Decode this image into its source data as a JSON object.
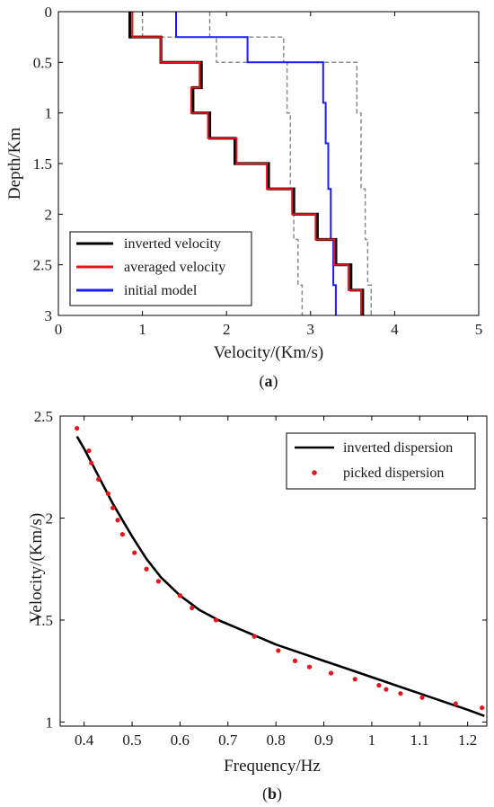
{
  "chart_data": [
    {
      "id": "a",
      "type": "line",
      "caption_letter": "a",
      "xlabel": "Velocity/(Km/s)",
      "ylabel": "Depth/Km",
      "xlim": [
        0,
        5
      ],
      "ylim": [
        0,
        3
      ],
      "y_inverted": true,
      "xticks": [
        0,
        1,
        2,
        3,
        4,
        5
      ],
      "yticks": [
        0,
        0.5,
        1,
        1.5,
        2,
        2.5,
        3
      ],
      "ytick_labels": [
        "0",
        "0.5",
        "1",
        "1.5",
        "2",
        "2.5",
        "3"
      ],
      "grid": false,
      "legend_position": "bottom-left",
      "series": [
        {
          "name": "inverted velocity",
          "color": "#000000",
          "style": "solid",
          "steps": [
            {
              "v": 0.85,
              "top": 0,
              "bottom": 0.25
            },
            {
              "v": 1.22,
              "top": 0.25,
              "bottom": 0.5
            },
            {
              "v": 1.7,
              "top": 0.5,
              "bottom": 0.75
            },
            {
              "v": 1.6,
              "top": 0.75,
              "bottom": 1.0
            },
            {
              "v": 1.8,
              "top": 1.0,
              "bottom": 1.25
            },
            {
              "v": 2.1,
              "top": 1.25,
              "bottom": 1.5
            },
            {
              "v": 2.5,
              "top": 1.5,
              "bottom": 1.75
            },
            {
              "v": 2.8,
              "top": 1.75,
              "bottom": 2.0
            },
            {
              "v": 3.08,
              "top": 2.0,
              "bottom": 2.25
            },
            {
              "v": 3.3,
              "top": 2.25,
              "bottom": 2.5
            },
            {
              "v": 3.48,
              "top": 2.5,
              "bottom": 2.75
            },
            {
              "v": 3.62,
              "top": 2.75,
              "bottom": 3.0
            }
          ]
        },
        {
          "name": "averaged velocity",
          "color": "#e8141b",
          "style": "solid",
          "steps": [
            {
              "v": 0.88,
              "top": 0,
              "bottom": 0.25
            },
            {
              "v": 1.22,
              "top": 0.25,
              "bottom": 0.5
            },
            {
              "v": 1.68,
              "top": 0.5,
              "bottom": 0.75
            },
            {
              "v": 1.58,
              "top": 0.75,
              "bottom": 1.0
            },
            {
              "v": 1.78,
              "top": 1.0,
              "bottom": 1.25
            },
            {
              "v": 2.12,
              "top": 1.25,
              "bottom": 1.5
            },
            {
              "v": 2.48,
              "top": 1.5,
              "bottom": 1.75
            },
            {
              "v": 2.78,
              "top": 1.75,
              "bottom": 2.0
            },
            {
              "v": 3.06,
              "top": 2.0,
              "bottom": 2.25
            },
            {
              "v": 3.28,
              "top": 2.25,
              "bottom": 2.5
            },
            {
              "v": 3.45,
              "top": 2.5,
              "bottom": 2.75
            },
            {
              "v": 3.6,
              "top": 2.75,
              "bottom": 3.0
            }
          ]
        },
        {
          "name": "initial model",
          "color": "#1a1aff",
          "style": "solid",
          "steps": [
            {
              "v": 1.4,
              "top": 0,
              "bottom": 0.25
            },
            {
              "v": 2.25,
              "top": 0.25,
              "bottom": 0.5
            },
            {
              "v": 3.15,
              "top": 0.5,
              "bottom": 0.9
            },
            {
              "v": 3.18,
              "top": 0.9,
              "bottom": 1.3
            },
            {
              "v": 3.21,
              "top": 1.3,
              "bottom": 1.75
            },
            {
              "v": 3.24,
              "top": 1.75,
              "bottom": 2.25
            },
            {
              "v": 3.27,
              "top": 2.25,
              "bottom": 2.7
            },
            {
              "v": 3.3,
              "top": 2.7,
              "bottom": 3.0
            }
          ]
        },
        {
          "name": "",
          "color": "#8c8c8c",
          "style": "dashed",
          "steps": [
            {
              "v": 1.0,
              "top": 0,
              "bottom": 0.25
            },
            {
              "v": 1.88,
              "top": 0.25,
              "bottom": 0.5
            },
            {
              "v": 2.72,
              "top": 0.5,
              "bottom": 1.0
            },
            {
              "v": 2.76,
              "top": 1.0,
              "bottom": 1.75
            },
            {
              "v": 2.8,
              "top": 1.75,
              "bottom": 2.25
            },
            {
              "v": 2.85,
              "top": 2.25,
              "bottom": 2.7
            },
            {
              "v": 2.9,
              "top": 2.7,
              "bottom": 3.0
            }
          ]
        },
        {
          "name": "",
          "color": "#8c8c8c",
          "style": "dashed",
          "steps": [
            {
              "v": 1.8,
              "top": 0,
              "bottom": 0.25
            },
            {
              "v": 2.68,
              "top": 0.25,
              "bottom": 0.5
            },
            {
              "v": 3.55,
              "top": 0.5,
              "bottom": 1.0
            },
            {
              "v": 3.6,
              "top": 1.0,
              "bottom": 1.75
            },
            {
              "v": 3.65,
              "top": 1.75,
              "bottom": 2.25
            },
            {
              "v": 3.68,
              "top": 2.25,
              "bottom": 2.7
            },
            {
              "v": 3.72,
              "top": 2.7,
              "bottom": 3.0
            }
          ]
        }
      ],
      "legend": [
        {
          "label": "inverted velocity",
          "color": "#000000"
        },
        {
          "label": "averaged velocity",
          "color": "#e8141b"
        },
        {
          "label": "initial model",
          "color": "#1a1aff"
        }
      ]
    },
    {
      "id": "b",
      "type": "line",
      "caption_letter": "b",
      "xlabel": "Frequency/Hz",
      "ylabel": "Velocity/(Km/s)",
      "xlim": [
        0.35,
        1.24
      ],
      "ylim": [
        0.98,
        2.5
      ],
      "xticks": [
        0.4,
        0.5,
        0.6,
        0.7,
        0.8,
        0.9,
        1,
        1.1,
        1.2
      ],
      "xtick_labels": [
        "0.4",
        "0.5",
        "0.6",
        "0.7",
        "0.8",
        "0.9",
        "1",
        "1.1",
        "1.2"
      ],
      "yticks": [
        1,
        1.5,
        2,
        2.5
      ],
      "ytick_labels": [
        "1",
        "1.5",
        "2",
        "2.5"
      ],
      "grid": false,
      "legend_position": "top-right",
      "series": [
        {
          "name": "inverted dispersion",
          "color": "#000000",
          "style": "line",
          "x": [
            0.385,
            0.4,
            0.42,
            0.44,
            0.46,
            0.48,
            0.5,
            0.53,
            0.56,
            0.6,
            0.64,
            0.68,
            0.72,
            0.76,
            0.8,
            0.85,
            0.9,
            0.95,
            1.0,
            1.05,
            1.1,
            1.15,
            1.2,
            1.235
          ],
          "y": [
            2.4,
            2.34,
            2.25,
            2.16,
            2.07,
            1.99,
            1.91,
            1.8,
            1.71,
            1.62,
            1.55,
            1.5,
            1.46,
            1.42,
            1.38,
            1.34,
            1.3,
            1.26,
            1.22,
            1.18,
            1.14,
            1.1,
            1.06,
            1.03
          ]
        },
        {
          "name": "picked dispersion",
          "color": "#e8141b",
          "style": "markers",
          "x": [
            0.385,
            0.41,
            0.415,
            0.43,
            0.45,
            0.46,
            0.47,
            0.48,
            0.505,
            0.53,
            0.555,
            0.6,
            0.625,
            0.675,
            0.755,
            0.805,
            0.84,
            0.87,
            0.915,
            0.965,
            1.015,
            1.03,
            1.06,
            1.105,
            1.175,
            1.23
          ],
          "y": [
            2.44,
            2.33,
            2.27,
            2.19,
            2.12,
            2.05,
            1.99,
            1.92,
            1.83,
            1.75,
            1.69,
            1.62,
            1.56,
            1.5,
            1.42,
            1.35,
            1.3,
            1.27,
            1.24,
            1.21,
            1.18,
            1.16,
            1.14,
            1.12,
            1.09,
            1.07
          ]
        }
      ],
      "legend": [
        {
          "label": "inverted dispersion",
          "color": "#000000",
          "kind": "line"
        },
        {
          "label": "picked dispersion",
          "color": "#e8141b",
          "kind": "marker"
        }
      ]
    }
  ],
  "captions": {
    "a": {
      "open": "(",
      "letter": "a",
      "close": ")"
    },
    "b": {
      "open": "(",
      "letter": "b",
      "close": ")"
    }
  }
}
